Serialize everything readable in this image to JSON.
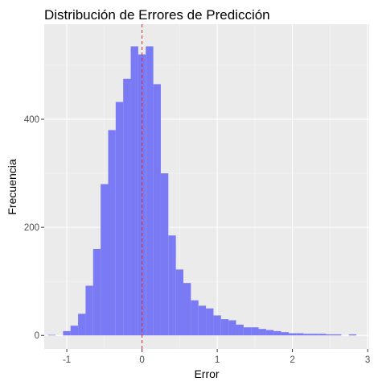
{
  "chart_data": {
    "type": "bar",
    "title": "Distribución de Errores de Predicción",
    "xlabel": "Error",
    "ylabel": "Frecuencia",
    "xlim": [
      -1.3,
      3.02
    ],
    "ylim": [
      -25,
      576
    ],
    "x_ticks": [
      -1,
      0,
      1,
      2,
      3
    ],
    "x_tick_labels": [
      "-1",
      "0",
      "1",
      "2",
      "3"
    ],
    "y_ticks": [
      0,
      200,
      400
    ],
    "y_tick_labels": [
      "0",
      "200",
      "400"
    ],
    "bin_width": 0.1,
    "bin_centers": [
      -1.2,
      -1.1,
      -1.0,
      -0.9,
      -0.8,
      -0.7,
      -0.6,
      -0.5,
      -0.4,
      -0.3,
      -0.2,
      -0.1,
      0.0,
      0.1,
      0.2,
      0.3,
      0.4,
      0.5,
      0.6,
      0.7,
      0.8,
      0.9,
      1.0,
      1.1,
      1.2,
      1.3,
      1.4,
      1.5,
      1.6,
      1.7,
      1.8,
      1.9,
      2.0,
      2.1,
      2.2,
      2.3,
      2.4,
      2.5,
      2.6,
      2.7,
      2.8
    ],
    "values": [
      1,
      0,
      8,
      18,
      40,
      92,
      160,
      280,
      380,
      432,
      475,
      535,
      520,
      535,
      465,
      300,
      185,
      122,
      97,
      65,
      55,
      50,
      37,
      30,
      28,
      20,
      15,
      15,
      12,
      10,
      8,
      6,
      4,
      4,
      3,
      3,
      3,
      2,
      2,
      0,
      2
    ],
    "reference_line": {
      "x": 0,
      "style": "dashed",
      "color": "#d62728"
    },
    "grid": true,
    "legend": "none",
    "colors": {
      "bar_fill": "#7a7af5",
      "panel_bg": "#ebebeb",
      "grid_major": "#ffffff",
      "grid_minor": "#f5f5f5"
    }
  }
}
